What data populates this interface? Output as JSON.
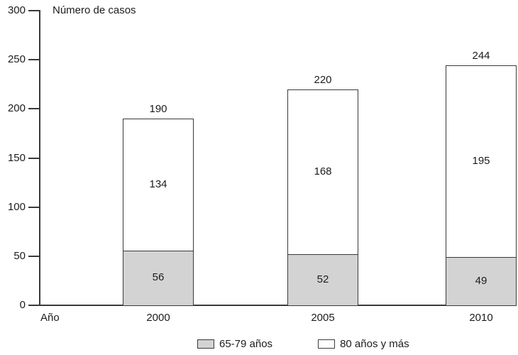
{
  "chart_data": {
    "type": "bar",
    "stacked": true,
    "title": "Número de casos",
    "xlabel": "Año",
    "categories": [
      "2000",
      "2005",
      "2010"
    ],
    "series": [
      {
        "name": "65-79 años",
        "color": "#d3d3d3",
        "values": [
          56,
          52,
          49
        ]
      },
      {
        "name": "80 años y más",
        "color": "#ffffff",
        "values": [
          134,
          168,
          195
        ]
      }
    ],
    "totals": [
      190,
      220,
      244
    ],
    "ylim": [
      0,
      300
    ],
    "yticks": [
      0,
      50,
      100,
      150,
      200,
      250,
      300
    ],
    "grid": false,
    "legend_position": "bottom",
    "colors": {
      "axis": "#3a3a3a",
      "text": "#1c1c1c",
      "background": "#ffffff"
    }
  }
}
